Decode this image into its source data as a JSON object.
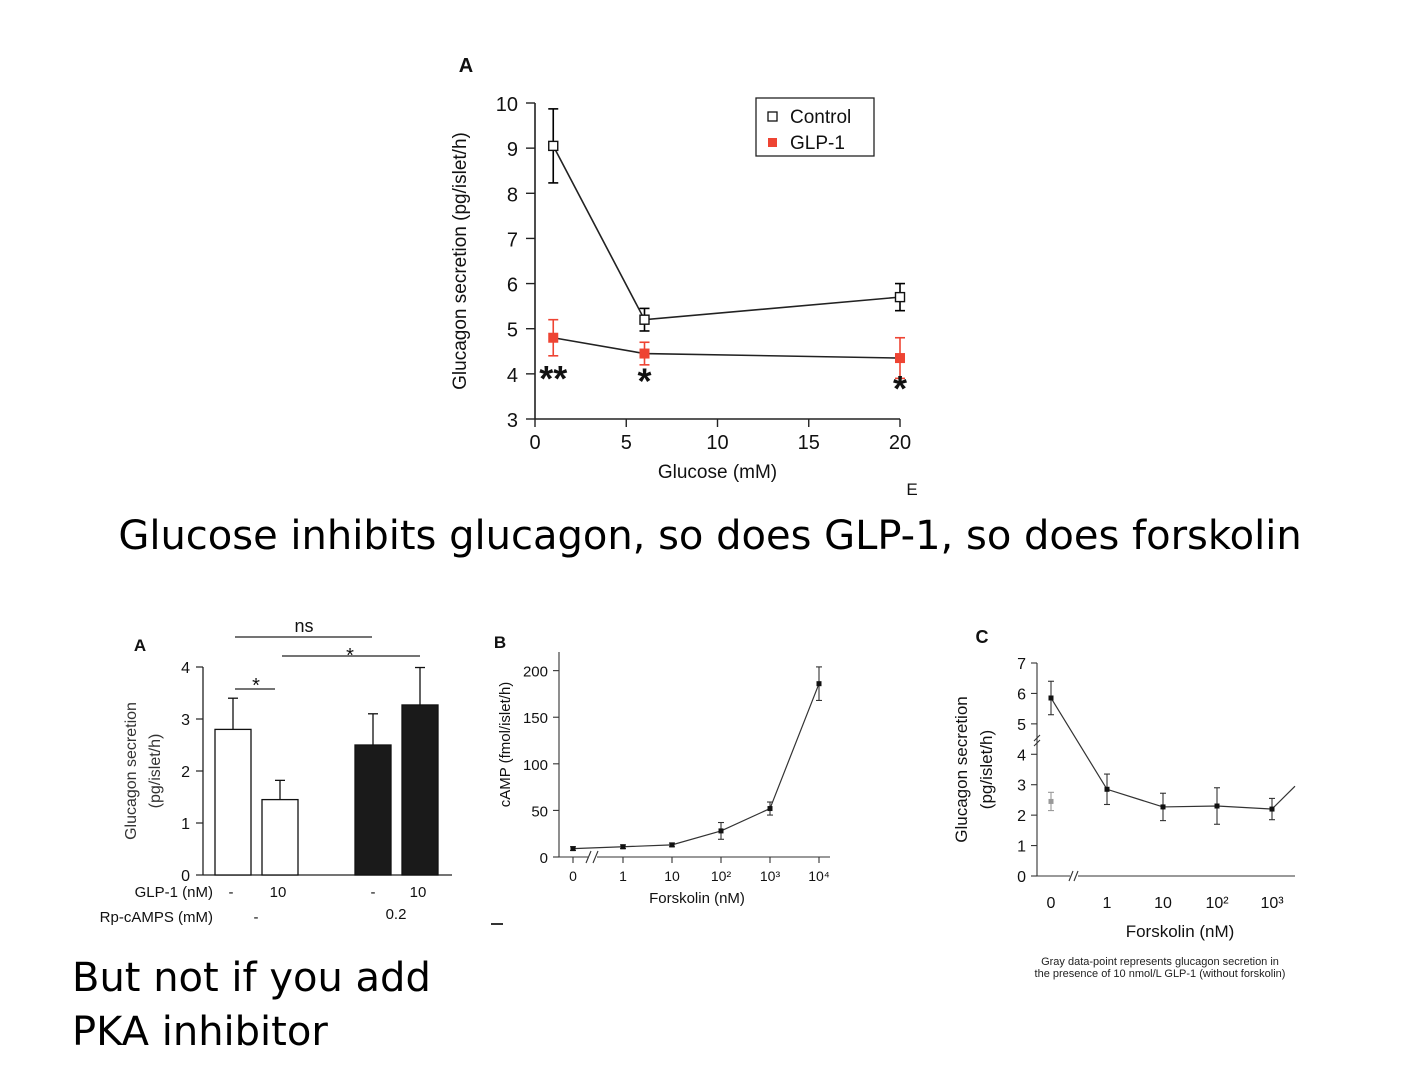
{
  "headline": "Glucose inhibits glucagon, so does GLP-1, so does forskolin",
  "subtext": [
    "But not if you add",
    "PKA inhibitor"
  ],
  "caption_c": [
    "Gray data-point represents glucagon secretion in",
    "the presence of 10 nmol/L GLP-1 (without forskolin)"
  ],
  "colors": {
    "control": "#000000",
    "glp1": "#ee4433",
    "white_bar": "#ffffff",
    "black_bar": "#1a1a1a",
    "gray_point": "#999999"
  },
  "chart_data": [
    {
      "id": "top-A",
      "type": "line",
      "panel_label": "A",
      "xlabel": "Glucose (mM)",
      "ylabel": "Glucagon secretion (pg/islet/h)",
      "xlim": [
        0,
        20
      ],
      "ylim": [
        3,
        10
      ],
      "xticks": [
        0,
        5,
        10,
        15,
        20
      ],
      "yticks": [
        3,
        4,
        5,
        6,
        7,
        8,
        9,
        10
      ],
      "legend_position": "top-right",
      "corner_mark": "E",
      "series": [
        {
          "name": "Control",
          "x": [
            1,
            6,
            20
          ],
          "y": [
            9.05,
            5.2,
            5.7
          ],
          "err": [
            0.82,
            0.25,
            0.3
          ],
          "marker": "open-square",
          "color": "#000000"
        },
        {
          "name": "GLP-1",
          "x": [
            1,
            6,
            20
          ],
          "y": [
            4.8,
            4.45,
            4.35
          ],
          "err": [
            0.4,
            0.25,
            0.45
          ],
          "marker": "filled-square",
          "color": "#ee4433"
        }
      ],
      "annotations": [
        {
          "text": "**",
          "x": 1,
          "y": 3.98
        },
        {
          "text": "*",
          "x": 6,
          "y": 3.92
        },
        {
          "text": "*",
          "x": 20,
          "y": 3.75
        }
      ]
    },
    {
      "id": "bottom-A",
      "type": "bar",
      "panel_label": "A",
      "ylabel": [
        "Glucagon secretion",
        "(pg/islet/h)"
      ],
      "ylim": [
        0,
        4
      ],
      "yticks": [
        0,
        1,
        2,
        3,
        4
      ],
      "bars": [
        {
          "value": 2.8,
          "err": 0.6,
          "fill": "white"
        },
        {
          "value": 1.45,
          "err": 0.37,
          "fill": "white"
        },
        {
          "value": 2.5,
          "err": 0.6,
          "fill": "black"
        },
        {
          "value": 3.27,
          "err": 0.72,
          "fill": "black"
        }
      ],
      "row_labels": [
        {
          "label": "GLP-1 (nM)",
          "values": [
            "-",
            "10",
            "-",
            "10"
          ]
        },
        {
          "label": "Rp-cAMPS (mM)",
          "values": [
            "-",
            "0.2"
          ]
        }
      ],
      "significance": [
        {
          "text": "ns",
          "from": 0,
          "to": 2
        },
        {
          "text": "*",
          "from": 0,
          "to": 1
        },
        {
          "text": "*",
          "from": 1,
          "to": 3
        }
      ]
    },
    {
      "id": "bottom-B",
      "type": "line",
      "panel_label": "B",
      "xlabel": "Forskolin (nM)",
      "ylabel": "cAMP (fmol/islet/h)",
      "ylim": [
        0,
        220
      ],
      "yticks": [
        0,
        50,
        100,
        150,
        200
      ],
      "xticklabels": [
        "0",
        "1",
        "10",
        "10²",
        "10³",
        "10⁴"
      ],
      "x": [
        0,
        1,
        10,
        100,
        1000,
        10000
      ],
      "y": [
        9,
        11,
        13,
        28,
        52,
        186
      ],
      "err": [
        2,
        2,
        2,
        9,
        7,
        18
      ]
    },
    {
      "id": "bottom-C",
      "type": "line",
      "panel_label": "C",
      "xlabel": "Forskolin (nM)",
      "ylabel": [
        "Glucagon secretion",
        "(pg/islet/h)"
      ],
      "ylim": [
        0,
        7
      ],
      "yticks": [
        0,
        1,
        2,
        3,
        4,
        5,
        6,
        7
      ],
      "xticklabels": [
        "0",
        "1",
        "10",
        "10²",
        "10³"
      ],
      "x": [
        0,
        1,
        10,
        100,
        1000
      ],
      "y": [
        5.85,
        2.85,
        2.27,
        2.3,
        2.2
      ],
      "err": [
        0.55,
        0.5,
        0.45,
        0.6,
        0.35
      ],
      "gray_point": {
        "x": 0,
        "y": 2.45,
        "err": 0.3
      }
    }
  ]
}
